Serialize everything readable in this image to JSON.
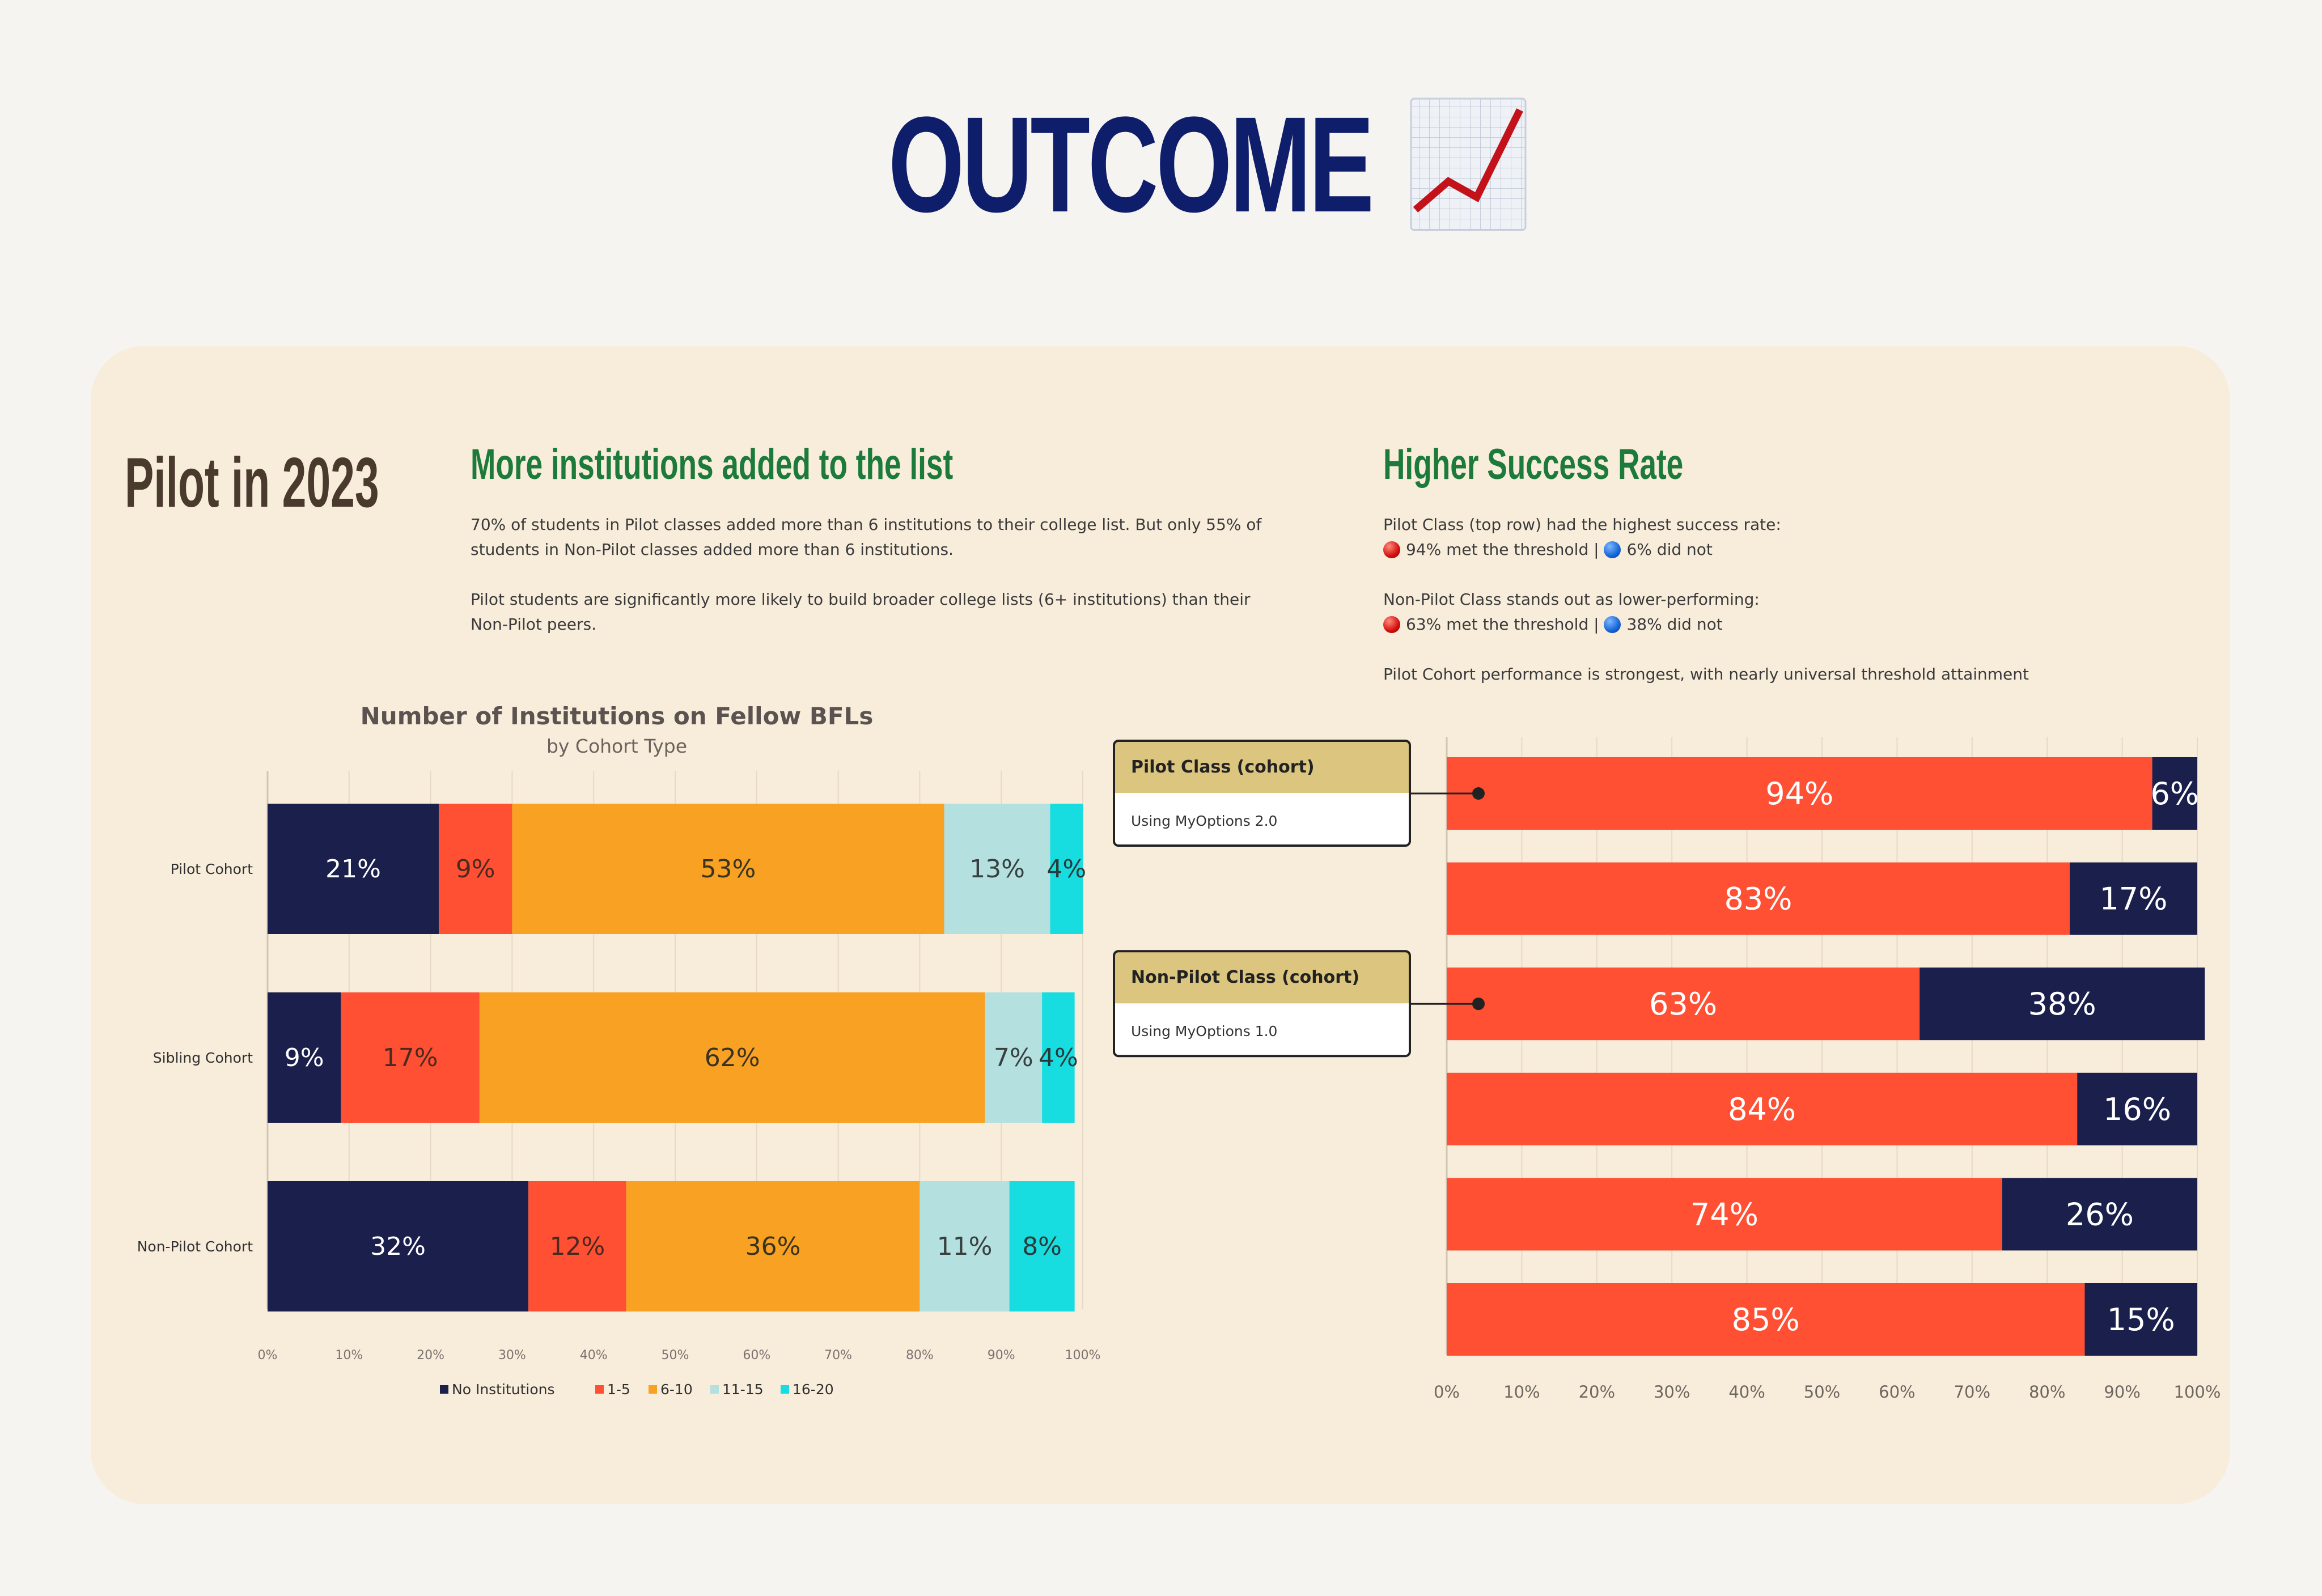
{
  "header": {
    "title": "OUTCOME",
    "icon": "chart-increasing-icon"
  },
  "section_title": "Pilot in 2023",
  "left_panel": {
    "heading": "More institutions added to the list",
    "paragraph1_line1": "70% of students in Pilot classes added more than 6 institutions to their college list. But only 55% of",
    "paragraph1_line2": "students in Non-Pilot classes added more than 6 institutions.",
    "paragraph2_line1": "Pilot students are significantly more likely to build broader college lists (6+ institutions) than their",
    "paragraph2_line2": "Non-Pilot peers."
  },
  "right_panel": {
    "heading": "Higher Success Rate",
    "p1_line1": "Pilot Class (top row) had the highest success rate:",
    "p1_met": "94% met the threshold",
    "p1_sep": "|",
    "p1_not": "6% did not",
    "p2_line1": "Non-Pilot Class stands out as lower-performing:",
    "p2_met": "63% met the threshold",
    "p2_sep": "|",
    "p2_not": "38% did not",
    "p3": "Pilot Cohort performance is strongest, with nearly universal threshold attainment"
  },
  "colors": {
    "navy": "#1b1f4b",
    "red_orange": "#ff5034",
    "orange": "#f8a122",
    "light_blue": "#b4e0e0",
    "cyan": "#17dde0",
    "title_navy": "#0f1e6b",
    "heading_green": "#1c7a3b",
    "callout_header": "#dcc57e"
  },
  "chart_data": [
    {
      "type": "bar",
      "orientation": "horizontal",
      "stacked": true,
      "title": "Number of Institutions on Fellow BFLs",
      "subtitle": "by Cohort Type",
      "categories": [
        "Pilot Cohort",
        "Sibling Cohort",
        "Non-Pilot Cohort"
      ],
      "series": [
        {
          "name": "No Institutions",
          "color": "#1b1f4b",
          "values": [
            21,
            9,
            32
          ],
          "label_color": "#ffffff"
        },
        {
          "name": "1-5",
          "color": "#ff5034",
          "values": [
            9,
            17,
            12
          ],
          "label_color": "#4a2a20"
        },
        {
          "name": "6-10",
          "color": "#f8a122",
          "values": [
            53,
            62,
            36
          ],
          "label_color": "#3a3320"
        },
        {
          "name": "11-15",
          "color": "#b4e0e0",
          "values": [
            13,
            7,
            11
          ],
          "label_color": "#3a4040"
        },
        {
          "name": "16-20",
          "color": "#17dde0",
          "values": [
            4,
            4,
            8
          ],
          "label_color": "#2a3a3a"
        }
      ],
      "data_labels": [
        [
          "21%",
          "9%",
          "53%",
          "13%",
          "4%"
        ],
        [
          "9%",
          "17%",
          "62%",
          "7%",
          "4%"
        ],
        [
          "32%",
          "12%",
          "36%",
          "11%",
          "8%"
        ]
      ],
      "x_ticks": [
        "0%",
        "10%",
        "20%",
        "30%",
        "40%",
        "50%",
        "60%",
        "70%",
        "80%",
        "90%",
        "100%"
      ],
      "xlim": [
        0,
        100
      ],
      "grid": true,
      "legend_position": "bottom"
    },
    {
      "type": "bar",
      "orientation": "horizontal",
      "stacked": true,
      "rows": 6,
      "series": [
        {
          "color": "#ff5034",
          "values": [
            94,
            83,
            63,
            84,
            74,
            85
          ],
          "labels": [
            "94%",
            "83%",
            "63%",
            "84%",
            "74%",
            "85%"
          ]
        },
        {
          "color": "#1b1f4b",
          "values": [
            6,
            17,
            38,
            16,
            26,
            15
          ],
          "labels": [
            "6%",
            "17%",
            "38%",
            "16%",
            "26%",
            "15%"
          ]
        }
      ],
      "x_ticks": [
        "0%",
        "10%",
        "20%",
        "30%",
        "40%",
        "50%",
        "60%",
        "70%",
        "80%",
        "90%",
        "100%"
      ],
      "xlim": [
        0,
        100
      ],
      "grid": true,
      "callouts": [
        {
          "row": 0,
          "title": "Pilot Class (cohort)",
          "subtitle": "Using MyOptions 2.0"
        },
        {
          "row": 2,
          "title": "Non-Pilot Class (cohort)",
          "subtitle": "Using MyOptions 1.0"
        }
      ]
    }
  ]
}
